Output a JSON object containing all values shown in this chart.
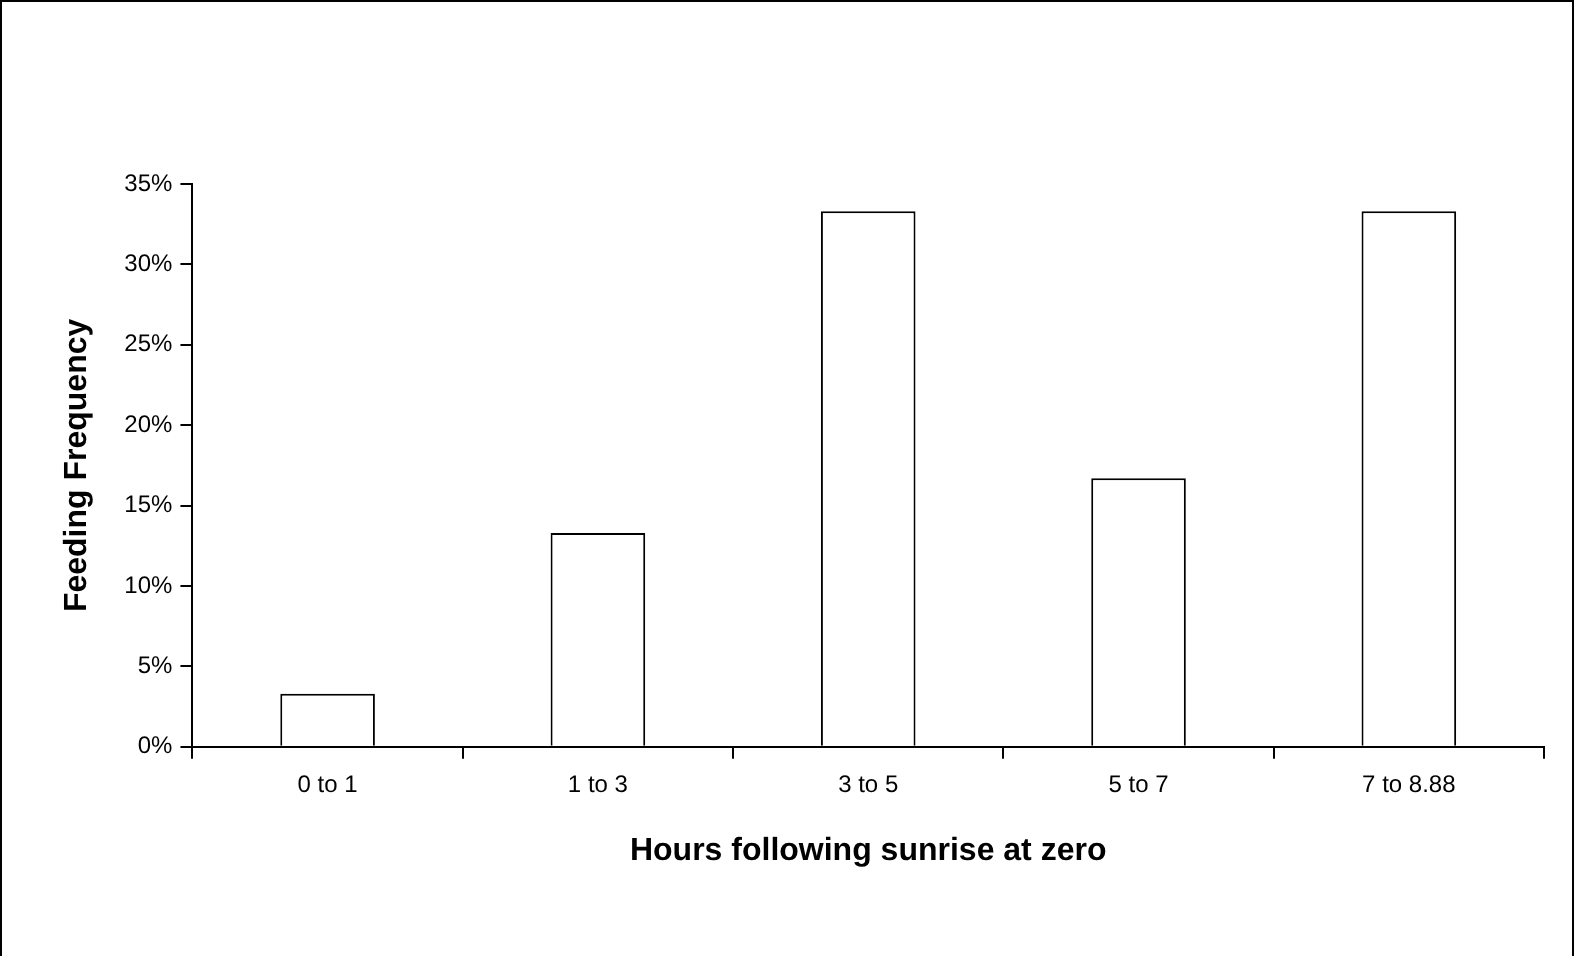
{
  "chart_data": {
    "type": "bar",
    "xlabel": "Hours following sunrise at zero",
    "ylabel": "Feeding Frequency",
    "categories": [
      "0 to 1",
      "1 to 3",
      "3 to 5",
      "5 to 7",
      "7 to 8.88"
    ],
    "values": [
      3.3,
      13.3,
      33.3,
      16.7,
      33.3
    ],
    "color": "#ffffff",
    "ylim": [
      0,
      35
    ],
    "yticks": [
      {
        "value": 0,
        "label": "0%"
      },
      {
        "value": 5,
        "label": "5%"
      },
      {
        "value": 10,
        "label": "10%"
      },
      {
        "value": 15,
        "label": "15%"
      },
      {
        "value": 20,
        "label": "20%"
      },
      {
        "value": 25,
        "label": "25%"
      },
      {
        "value": 30,
        "label": "30%"
      },
      {
        "value": 35,
        "label": "35%"
      }
    ],
    "grid": false,
    "legend": false
  }
}
